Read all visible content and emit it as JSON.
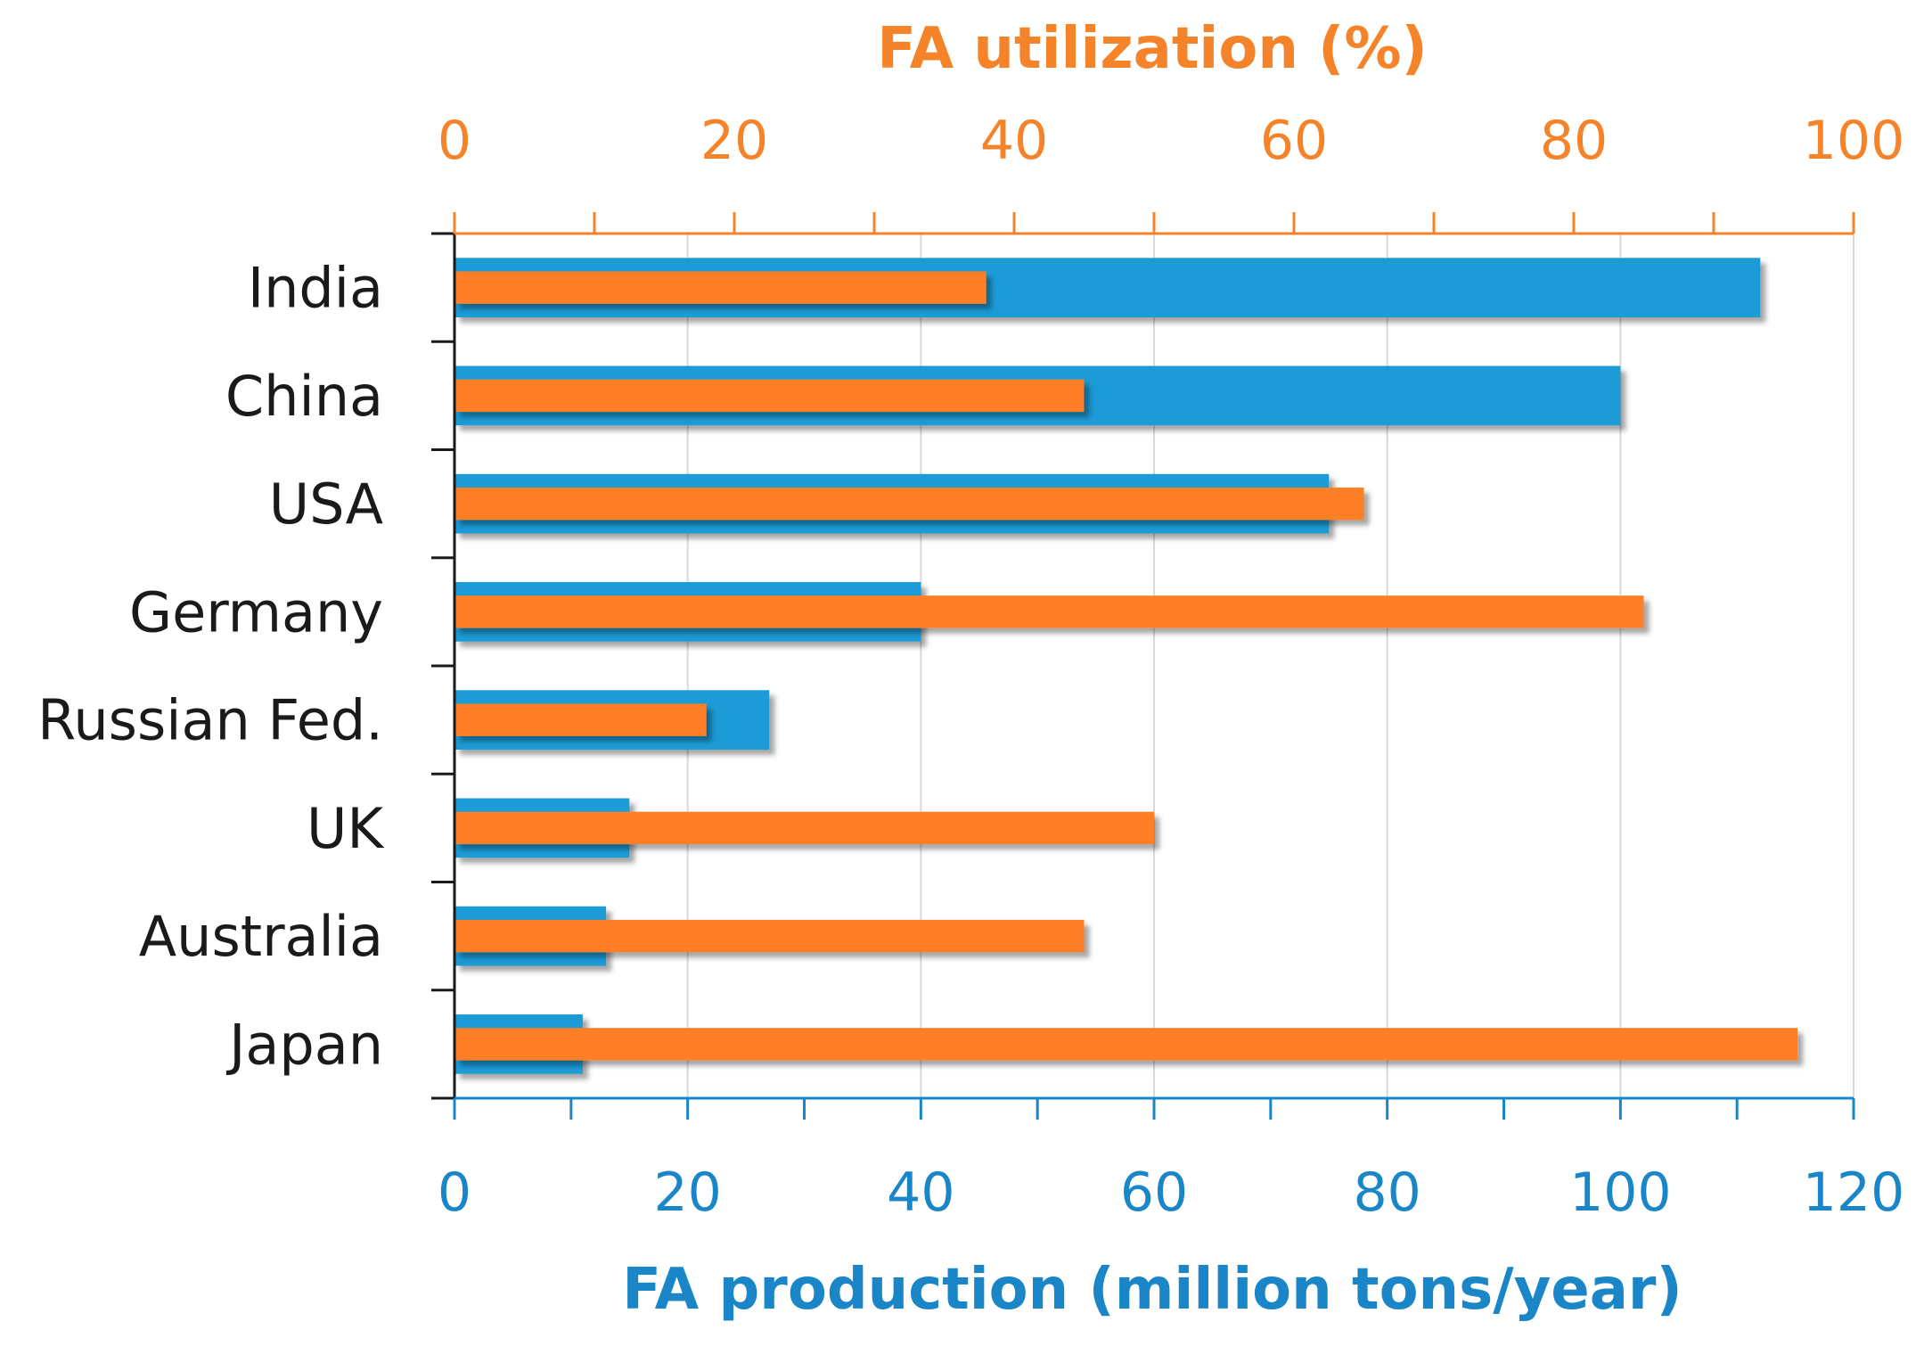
{
  "chart_data": {
    "type": "bar",
    "orientation": "horizontal",
    "categories": [
      "India",
      "China",
      "USA",
      "Germany",
      "Russian Fed.",
      "UK",
      "Australia",
      "Japan"
    ],
    "series": [
      {
        "name": "FA production",
        "axis": "bottom",
        "color": "#1a9bd7",
        "values": [
          112,
          100,
          75,
          40,
          27,
          15,
          13,
          11
        ]
      },
      {
        "name": "FA utilization",
        "axis": "top",
        "color": "#ff7f27",
        "values": [
          38,
          45,
          65,
          85,
          18,
          50,
          45,
          96
        ]
      }
    ],
    "bottom_axis": {
      "title": "FA production (million tons/year)",
      "range": [
        0,
        120
      ],
      "ticks": [
        "0",
        "20",
        "40",
        "60",
        "80",
        "100",
        "120"
      ],
      "tick_values": [
        0,
        20,
        40,
        60,
        80,
        100,
        120
      ],
      "color": "#1a86c8"
    },
    "top_axis": {
      "title": "FA utilization (%)",
      "range": [
        0,
        100
      ],
      "ticks": [
        "0",
        "20",
        "40",
        "60",
        "80",
        "100"
      ],
      "tick_values": [
        0,
        20,
        40,
        60,
        80,
        100
      ],
      "color": "#f5832a"
    },
    "grid": true
  }
}
